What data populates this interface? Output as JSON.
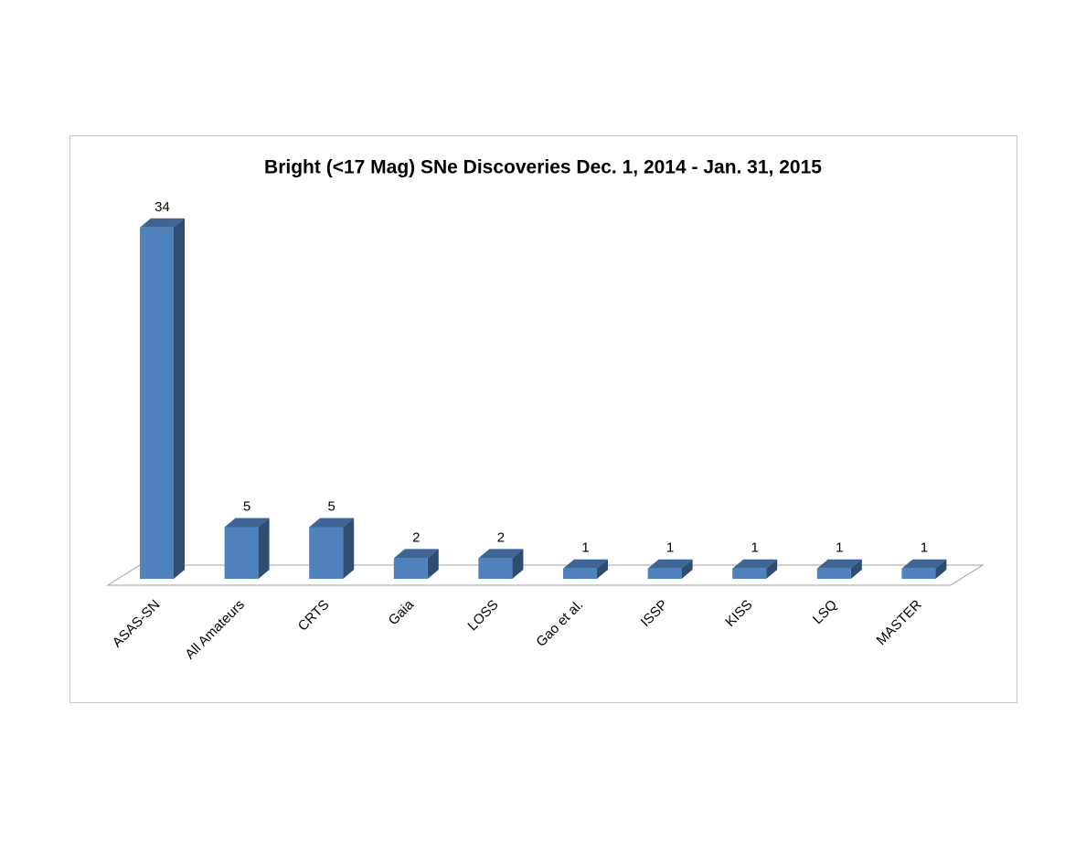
{
  "chart_data": {
    "type": "bar3d",
    "title": "Bright (<17 Mag) SNe Discoveries Dec. 1, 2014 - Jan. 31, 2015",
    "categories": [
      "ASAS-SN",
      "All Amateurs",
      "CRTS",
      "Gaia",
      "LOSS",
      "Gao et al.",
      "ISSP",
      "KISS",
      "LSQ",
      "MASTER"
    ],
    "values": [
      34,
      5,
      5,
      2,
      2,
      1,
      1,
      1,
      1,
      1
    ],
    "color": "#4f81bd"
  }
}
